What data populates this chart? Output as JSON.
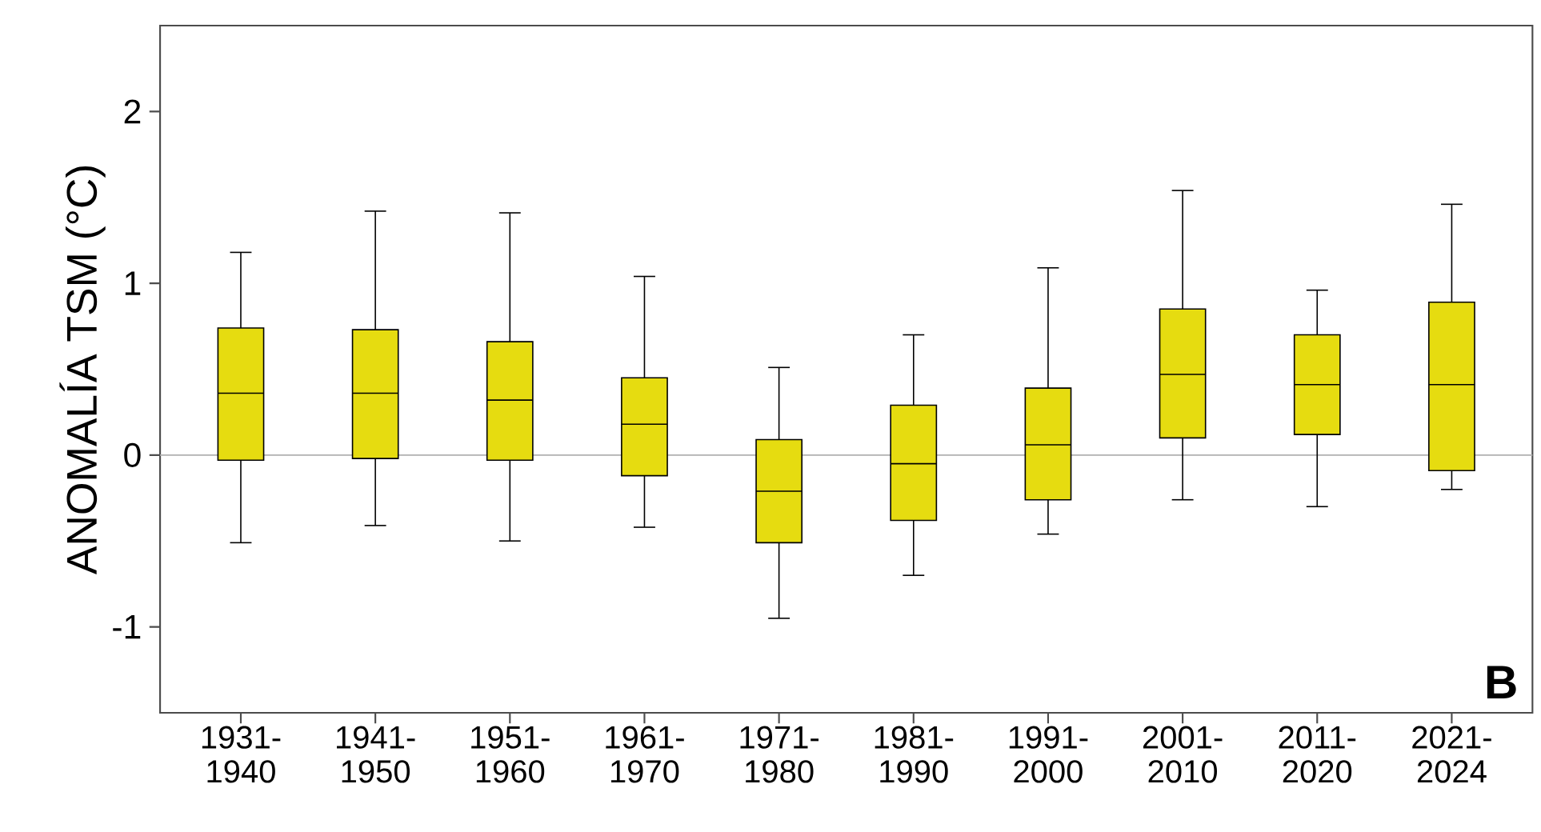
{
  "chart_data": {
    "type": "box",
    "ylabel": "ANOMALÍA TSM (°C)",
    "categories": [
      "1931- 1940",
      "1941- 1950",
      "1951- 1960",
      "1961- 1970",
      "1971- 1980",
      "1981- 1990",
      "1991- 2000",
      "2001- 2010",
      "2011- 2020",
      "2021- 2024"
    ],
    "boxes": [
      {
        "low": -0.51,
        "q1": -0.03,
        "median": 0.36,
        "q3": 0.74,
        "high": 1.18
      },
      {
        "low": -0.41,
        "q1": -0.02,
        "median": 0.36,
        "q3": 0.73,
        "high": 1.42
      },
      {
        "low": -0.5,
        "q1": -0.03,
        "median": 0.32,
        "q3": 0.66,
        "high": 1.41
      },
      {
        "low": -0.42,
        "q1": -0.12,
        "median": 0.18,
        "q3": 0.45,
        "high": 1.04
      },
      {
        "low": -0.95,
        "q1": -0.51,
        "median": -0.21,
        "q3": 0.09,
        "high": 0.51
      },
      {
        "low": -0.7,
        "q1": -0.38,
        "median": -0.05,
        "q3": 0.29,
        "high": 0.7
      },
      {
        "low": -0.46,
        "q1": -0.26,
        "median": 0.06,
        "q3": 0.39,
        "high": 1.09
      },
      {
        "low": -0.26,
        "q1": 0.1,
        "median": 0.47,
        "q3": 0.85,
        "high": 1.54
      },
      {
        "low": -0.3,
        "q1": 0.12,
        "median": 0.41,
        "q3": 0.7,
        "high": 0.96
      },
      {
        "low": -0.2,
        "q1": -0.09,
        "median": 0.41,
        "q3": 0.89,
        "high": 1.46
      }
    ],
    "color": "#e6dc10",
    "ylim": [
      -1.5,
      2.5
    ],
    "yticks": [
      -1,
      0,
      1,
      2
    ],
    "ref_lines": [
      {
        "axis": "y",
        "value": 0,
        "color": "#b0b0b0"
      }
    ],
    "annotations": [
      "B"
    ]
  }
}
